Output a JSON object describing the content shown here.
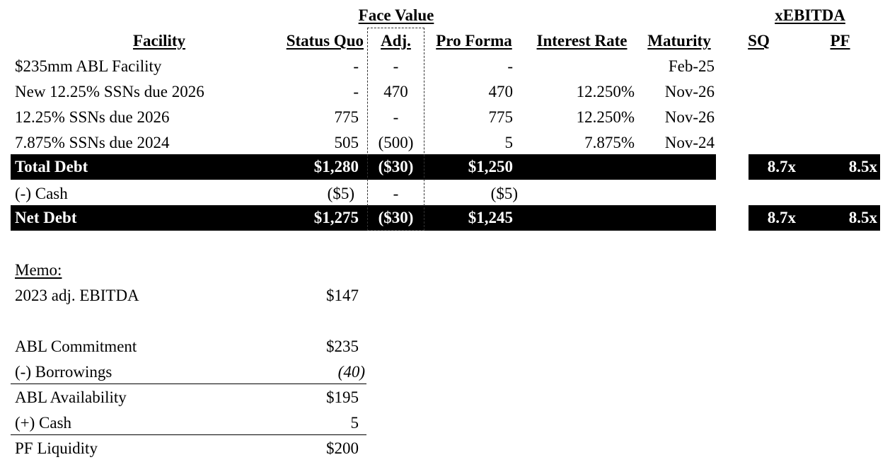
{
  "headers": {
    "face_value": "Face Value",
    "xebitda": "xEBITDA",
    "facility": "Facility",
    "status_quo": "Status Quo",
    "adj": "Adj.",
    "pro_forma": "Pro Forma",
    "interest_rate": "Interest Rate",
    "maturity": "Maturity",
    "sq": "SQ",
    "pf": "PF"
  },
  "rows": [
    {
      "facility": "$235mm ABL Facility",
      "sq": "-",
      "adj": "-",
      "pf": "-",
      "rate": "",
      "maturity": "Feb-25"
    },
    {
      "facility": "New 12.25% SSNs due 2026",
      "sq": "-",
      "adj": "470",
      "pf": "470",
      "rate": "12.250%",
      "maturity": "Nov-26"
    },
    {
      "facility": "12.25% SSNs due 2026",
      "sq": "775",
      "adj": "-",
      "pf": "775",
      "rate": "12.250%",
      "maturity": "Nov-26"
    },
    {
      "facility": "7.875% SSNs due 2024",
      "sq": "505",
      "adj": "(500)",
      "pf": "5",
      "rate": "7.875%",
      "maturity": "Nov-24"
    }
  ],
  "total_debt": {
    "label": "Total Debt",
    "sq": "$1,280",
    "adj": "($30)",
    "pf": "$1,250",
    "x_sq": "8.7x",
    "x_pf": "8.5x"
  },
  "cash": {
    "label": "(-) Cash",
    "sq": "($5)",
    "adj": "-",
    "pf": "($5)"
  },
  "net_debt": {
    "label": "Net Debt",
    "sq": "$1,275",
    "adj": "($30)",
    "pf": "$1,245",
    "x_sq": "8.7x",
    "x_pf": "8.5x"
  },
  "memo": {
    "title": "Memo:",
    "ebitda_label": "2023 adj. EBITDA",
    "ebitda": "$147",
    "abl_commitment_label": "ABL Commitment",
    "abl_commitment": "$235",
    "borrowings_label": "(-) Borrowings",
    "borrowings": "(40)",
    "abl_availability_label": "ABL Availability",
    "abl_availability": "$195",
    "plus_cash_label": "(+) Cash",
    "plus_cash": "5",
    "pf_liquidity_label": "PF Liquidity",
    "pf_liquidity": "$200"
  }
}
